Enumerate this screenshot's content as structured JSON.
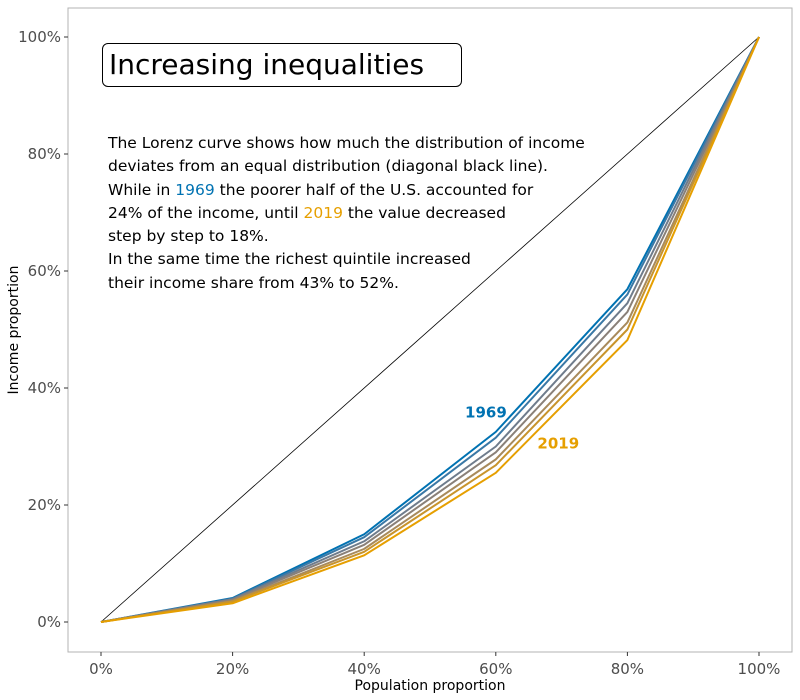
{
  "chart_data": {
    "type": "line",
    "title": "Increasing inequalities",
    "xlabel": "Population proportion",
    "ylabel": "Income proportion",
    "x": [
      0,
      0.2,
      0.4,
      0.6,
      0.8,
      1.0
    ],
    "xlim": [
      0,
      1
    ],
    "ylim": [
      0,
      1
    ],
    "x_ticks": [
      0,
      0.2,
      0.4,
      0.6,
      0.8,
      1.0
    ],
    "y_ticks": [
      0,
      0.2,
      0.4,
      0.6,
      0.8,
      1.0
    ],
    "x_tick_labels": [
      "0%",
      "20%",
      "40%",
      "60%",
      "80%",
      "100%"
    ],
    "y_tick_labels": [
      "0%",
      "20%",
      "40%",
      "60%",
      "80%",
      "100%"
    ],
    "grid": false,
    "equality_line": {
      "x": [
        0,
        1
      ],
      "y": [
        0,
        1
      ],
      "color": "#000000"
    },
    "series": [
      {
        "name": "1969",
        "values": [
          0,
          0.041,
          0.15,
          0.325,
          0.569,
          1.0
        ],
        "color": "#0072B2"
      },
      {
        "values": [
          0,
          0.04,
          0.145,
          0.315,
          0.56,
          1.0
        ],
        "color": "#3a78a6"
      },
      {
        "values": [
          0,
          0.039,
          0.138,
          0.3,
          0.545,
          1.0
        ],
        "color": "#6f7c8c"
      },
      {
        "values": [
          0,
          0.038,
          0.132,
          0.29,
          0.53,
          1.0
        ],
        "color": "#8a8078"
      },
      {
        "values": [
          0,
          0.036,
          0.125,
          0.278,
          0.512,
          1.0
        ],
        "color": "#a88a5c"
      },
      {
        "values": [
          0,
          0.035,
          0.12,
          0.268,
          0.5,
          1.0
        ],
        "color": "#c8942c"
      },
      {
        "name": "2019",
        "values": [
          0,
          0.032,
          0.114,
          0.255,
          0.482,
          1.0
        ],
        "color": "#E69F00"
      }
    ],
    "annotations": [
      {
        "text": "1969",
        "x": 0.585,
        "y": 0.35,
        "color": "#0072B2"
      },
      {
        "text": "2019",
        "x": 0.695,
        "y": 0.297,
        "color": "#E69F00"
      }
    ]
  },
  "annotation_text": {
    "line1": "The Lorenz curve shows how much the distribution of income",
    "line2": "deviates from an equal distribution (diagonal black line).",
    "line3_a": "While in ",
    "line3_year": "1969",
    "line3_b": " the poorer half of the U.S. accounted for",
    "line4_a": "24% of the income, until ",
    "line4_year": "2019",
    "line4_b": " the value decreased",
    "line5": "step by step to 18%.",
    "line6": "In the same time the richest quintile increased",
    "line7": "their income share from 43% to 52%."
  },
  "colors": {
    "blue": "#0072B2",
    "orange": "#E69F00",
    "panel_border": "#b3b3b3"
  }
}
